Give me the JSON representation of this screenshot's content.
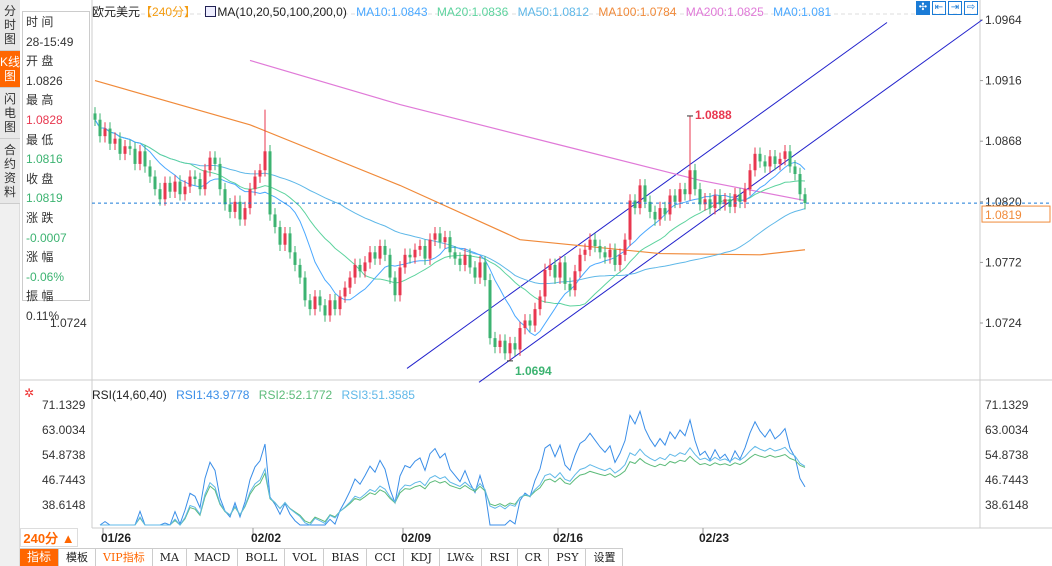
{
  "side_tabs": [
    "分时图",
    "K线图",
    "闪电图",
    "合约资料"
  ],
  "active_tab": 1,
  "info": {
    "time_label": "时 间",
    "time": "28-15:49",
    "open_label": "开 盘",
    "open": "1.0826",
    "high_label": "最 高",
    "high": "1.0828",
    "low_label": "最 低",
    "low": "1.0816",
    "close_label": "收 盘",
    "close": "1.0819",
    "change_label": "涨 跌",
    "change": "-0.0007",
    "pct_label": "涨 幅",
    "pct": "-0.06%",
    "amp_label": "振 幅",
    "amp": "0.11%"
  },
  "header": {
    "symbol": "欧元美元",
    "period": "【240分】",
    "ma_params": "MA(10,20,50,100,200,0)",
    "ma10": "MA10:1.0843",
    "ma20": "MA20:1.0836",
    "ma50": "MA50:1.0812",
    "ma100": "MA100:1.0784",
    "ma200": "MA200:1.0825",
    "ma0": "MA0:1.081"
  },
  "tools": [
    "✣",
    "⇤",
    "⇥",
    "⇨"
  ],
  "rsi_header": {
    "params": "RSI(14,60,40)",
    "rsi1": "RSI1:43.9778",
    "rsi2": "RSI2:52.1772",
    "rsi3": "RSI3:51.3585"
  },
  "period_button": "240分 ▲",
  "bottom_tabs": [
    "指标",
    "模板",
    "VIP指标",
    "MA",
    "MACD",
    "BOLL",
    "VOL",
    "BIAS",
    "CCI",
    "KDJ",
    "LW&",
    "RSI",
    "CR",
    "PSY",
    "设置"
  ],
  "colors": {
    "up": "#e8374f",
    "down": "#3cb371",
    "ma10": "#4aa8ff",
    "ma20": "#5dd39e",
    "ma50": "#5fb8e8",
    "ma100": "#f08a3a",
    "ma200": "#e07ad8",
    "channel": "#2222cc",
    "rsi1": "#3a8ee8",
    "rsi2": "#5dbb7a",
    "rsi3": "#5fb8e8"
  },
  "chart_data": {
    "type": "candlestick",
    "title": "欧元美元 240分",
    "price_ticks": [
      "1.0964",
      "1.0916",
      "1.0868",
      "1.0820",
      "1.0772",
      "1.0724"
    ],
    "left_tick": "1.0724",
    "ylim": [
      1.0724,
      1.0964
    ],
    "x_ticks": [
      {
        "label": "01/26",
        "index": 1
      },
      {
        "label": "02/02",
        "index": 31
      },
      {
        "label": "02/09",
        "index": 61
      },
      {
        "label": "02/16",
        "index": 92
      },
      {
        "label": "02/23",
        "index": 121
      }
    ],
    "closes": [
      1.0885,
      1.0872,
      1.0878,
      1.0866,
      1.087,
      1.0858,
      1.0864,
      1.0862,
      1.085,
      1.086,
      1.0848,
      1.084,
      1.083,
      1.0822,
      1.0835,
      1.0828,
      1.0836,
      1.0826,
      1.0832,
      1.084,
      1.0838,
      1.083,
      1.0845,
      1.0855,
      1.085,
      1.083,
      1.0818,
      1.0812,
      1.082,
      1.0806,
      1.0815,
      1.083,
      1.084,
      1.0845,
      1.086,
      1.081,
      1.08,
      1.0786,
      1.0795,
      1.078,
      1.077,
      1.076,
      1.0742,
      1.0735,
      1.0745,
      1.0738,
      1.073,
      1.0742,
      1.0735,
      1.0745,
      1.0752,
      1.076,
      1.077,
      1.0765,
      1.0772,
      1.078,
      1.0775,
      1.0785,
      1.0778,
      1.076,
      1.0746,
      1.0768,
      1.0778,
      1.0776,
      1.0782,
      1.0785,
      1.0775,
      1.079,
      1.0795,
      1.0788,
      1.0792,
      1.078,
      1.0775,
      1.077,
      1.0778,
      1.0768,
      1.076,
      1.0772,
      1.0758,
      1.0712,
      1.0705,
      1.071,
      1.07,
      1.0708,
      1.0703,
      1.072,
      1.0726,
      1.0722,
      1.0735,
      1.0745,
      1.0766,
      1.077,
      1.076,
      1.0772,
      1.0755,
      1.075,
      1.0765,
      1.0778,
      1.0782,
      1.079,
      1.0785,
      1.078,
      1.0776,
      1.0782,
      1.077,
      1.0778,
      1.079,
      1.0821,
      1.0815,
      1.0833,
      1.082,
      1.0812,
      1.0806,
      1.0815,
      1.081,
      1.0825,
      1.082,
      1.083,
      1.0826,
      1.0845,
      1.083,
      1.0818,
      1.0822,
      1.0815,
      1.0825,
      1.0818,
      1.0822,
      1.0816,
      1.0826,
      1.082,
      1.083,
      1.0845,
      1.0858,
      1.0852,
      1.0848,
      1.0856,
      1.085,
      1.0854,
      1.086,
      1.0848,
      1.0842,
      1.0826,
      1.0819
    ],
    "first_open": 1.089,
    "extremes": [
      {
        "index": 34,
        "high": 1.0893
      },
      {
        "index": 119,
        "high": 1.0888,
        "label": "1.0888"
      },
      {
        "index": 83,
        "low": 1.0694,
        "label": "1.0694"
      }
    ],
    "ma100": [
      [
        0,
        1.0916
      ],
      [
        31,
        1.0881
      ],
      [
        61,
        1.0833
      ],
      [
        85,
        1.079
      ],
      [
        113,
        1.0779
      ],
      [
        133,
        1.0778
      ],
      [
        142,
        1.0782
      ]
    ],
    "ma200": [
      [
        31,
        1.0932
      ],
      [
        61,
        1.0897
      ],
      [
        93,
        1.0865
      ],
      [
        121,
        1.0837
      ],
      [
        142,
        1.0821
      ]
    ],
    "channel": [
      [
        [
          62.4,
          1.0688
        ],
        [
          158.4,
          1.0962
        ]
      ],
      [
        [
          76.8,
          1.0677
        ],
        [
          177.4,
          1.0964
        ]
      ]
    ],
    "last_price": "1.0819",
    "rsi_ticks": [
      "71.1329",
      "63.0034",
      "54.8738",
      "46.7443",
      "38.6148"
    ],
    "rsi_ylim": [
      38.6148,
      71.1329
    ],
    "rsi_periods": [
      14,
      60,
      40
    ]
  }
}
